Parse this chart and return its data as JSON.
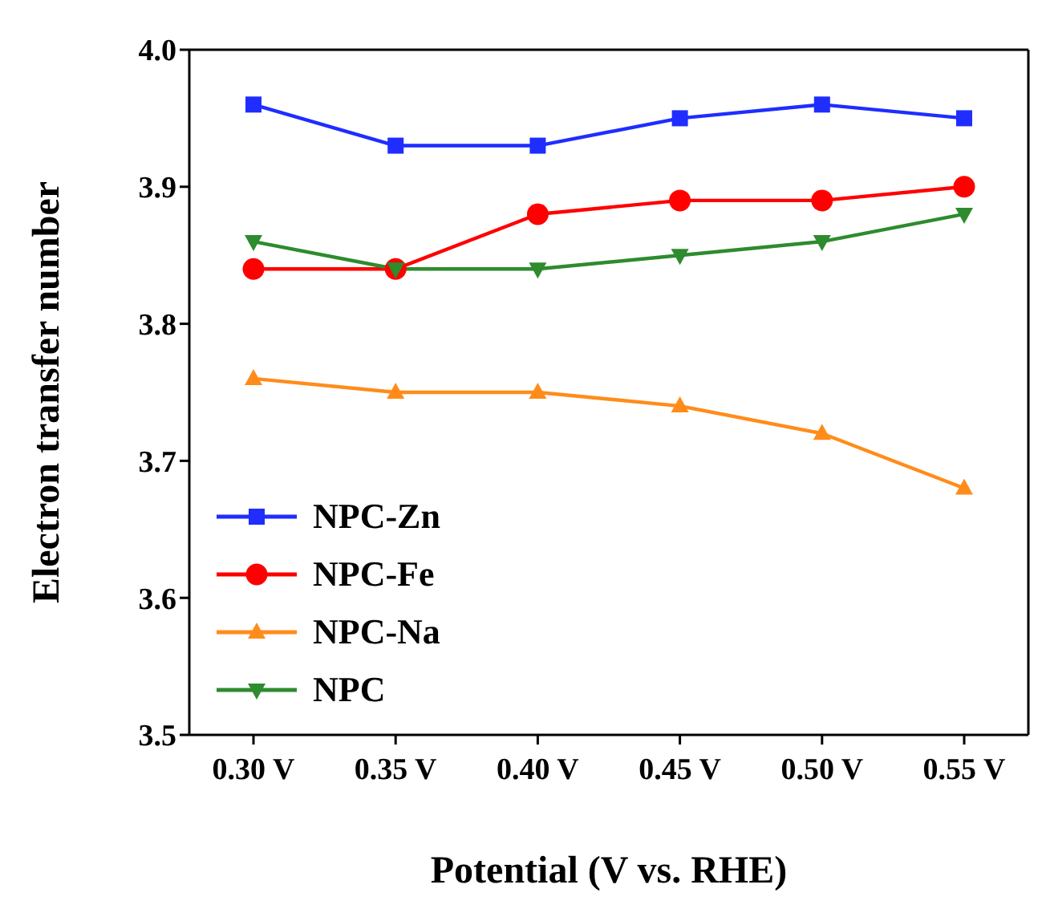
{
  "chart_data": {
    "type": "line",
    "xlabel": "Potential (V vs. RHE)",
    "ylabel": "Electron transfer number",
    "categories": [
      "0.30 V",
      "0.35 V",
      "0.40 V",
      "0.45 V",
      "0.50 V",
      "0.55 V"
    ],
    "series": [
      {
        "name": "NPC-Zn",
        "color": "#1f2dff",
        "marker": "square",
        "values": [
          3.96,
          3.93,
          3.93,
          3.95,
          3.96,
          3.95
        ]
      },
      {
        "name": "NPC-Fe",
        "color": "#ff0000",
        "marker": "circle",
        "values": [
          3.84,
          3.84,
          3.88,
          3.89,
          3.89,
          3.9
        ]
      },
      {
        "name": "NPC-Na",
        "color": "#ff8c1a",
        "marker": "triangle",
        "values": [
          3.76,
          3.75,
          3.75,
          3.74,
          3.72,
          3.68
        ]
      },
      {
        "name": "NPC",
        "color": "#2e8b2e",
        "marker": "triangle-down",
        "values": [
          3.86,
          3.84,
          3.84,
          3.85,
          3.86,
          3.88
        ]
      }
    ],
    "ylim": [
      3.5,
      4.0
    ],
    "yticks": [
      3.5,
      3.6,
      3.7,
      3.8,
      3.9,
      {
        "value": 4.0,
        "label": "4.0"
      }
    ],
    "grid": false,
    "legend": "bottom left",
    "line_style": "solid"
  }
}
